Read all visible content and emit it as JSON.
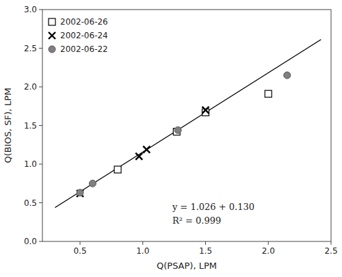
{
  "chart_data": {
    "type": "scatter",
    "x_label": "Q(PSAP), LPM",
    "y_label": "Q(BIOS, SF), LPM",
    "xlim": [
      0.2,
      2.5
    ],
    "ylim": [
      0.0,
      3.0
    ],
    "xticks": [
      0.5,
      {
        "value": 1.0,
        "label": "1.0"
      },
      1.5,
      {
        "value": 2.0,
        "label": "2.0"
      },
      2.5
    ],
    "yticks": [
      {
        "value": 0.0,
        "label": "0.0"
      },
      0.5,
      {
        "value": 1.0,
        "label": "1.0"
      },
      1.5,
      {
        "value": 2.0,
        "label": "2.0"
      },
      2.5,
      {
        "value": 3.0,
        "label": "3.0"
      }
    ],
    "grid": false,
    "legend": "upper left",
    "series": [
      {
        "name": "2002-06-26",
        "type": "scatter",
        "marker": "square",
        "color": "white",
        "x": [
          0.8,
          1.27,
          1.5,
          2.0
        ],
        "values": [
          0.93,
          1.42,
          1.67,
          1.91
        ]
      },
      {
        "name": "2002-06-24",
        "type": "scatter",
        "marker": "x",
        "color": "black",
        "x": [
          0.5,
          0.97,
          1.03,
          1.5
        ],
        "values": [
          0.62,
          1.1,
          1.19,
          1.7
        ]
      },
      {
        "name": "2002-06-22",
        "type": "scatter",
        "marker": "circle",
        "color": "#808080",
        "x": [
          0.5,
          0.6,
          1.28,
          2.15
        ],
        "values": [
          0.63,
          0.75,
          1.44,
          2.15
        ]
      },
      {
        "type": "line",
        "color": "black",
        "x": [
          0.3,
          2.42
        ],
        "values": [
          0.4378,
          2.61292
        ]
      }
    ],
    "annotations": [
      {
        "text": "y = 1.026 + 0.130"
      },
      {
        "text": "R² = 0.999"
      }
    ]
  }
}
